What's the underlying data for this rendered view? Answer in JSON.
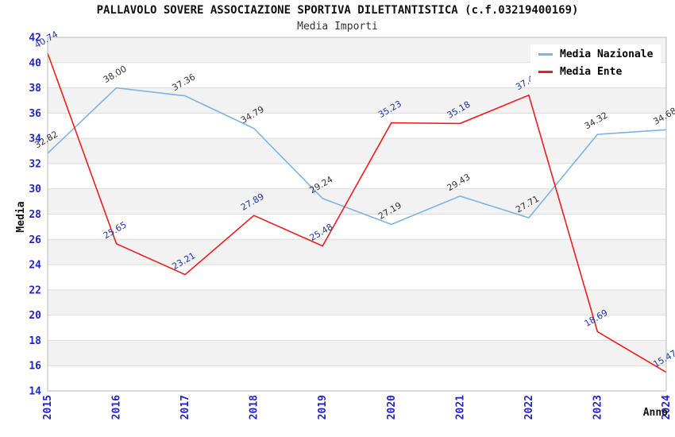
{
  "chart_data": {
    "type": "line",
    "title": "PALLAVOLO SOVERE ASSOCIAZIONE SPORTIVA DILETTANTISTICA (c.f.03219400169)",
    "subtitle": "Media Importi",
    "xlabel": "Anno",
    "ylabel": "Media",
    "x": [
      "2015",
      "2016",
      "2017",
      "2018",
      "2019",
      "2020",
      "2021",
      "2022",
      "2023",
      "2024"
    ],
    "ylim": [
      14,
      42
    ],
    "ytick_step": 2,
    "grid": true,
    "legend_position": "top-right",
    "band_color": "#f2f2f2",
    "gridline_color": "#dcdcdc",
    "frame_color": "#b9b9b9",
    "axis_tick_color": "#2323cb",
    "axis_title_color": "#111111",
    "series": [
      {
        "name": "Media Nazionale",
        "color": "#7eb2e4",
        "label_color": "#333333",
        "values": [
          32.82,
          38.0,
          37.36,
          34.79,
          29.24,
          27.19,
          29.43,
          27.71,
          34.32,
          34.68
        ]
      },
      {
        "name": "Media Ente",
        "color": "#ee1c1c",
        "label_color": "#2233aa",
        "values": [
          40.74,
          25.65,
          23.21,
          27.89,
          25.48,
          35.23,
          35.18,
          37.42,
          18.69,
          15.47
        ]
      }
    ]
  }
}
